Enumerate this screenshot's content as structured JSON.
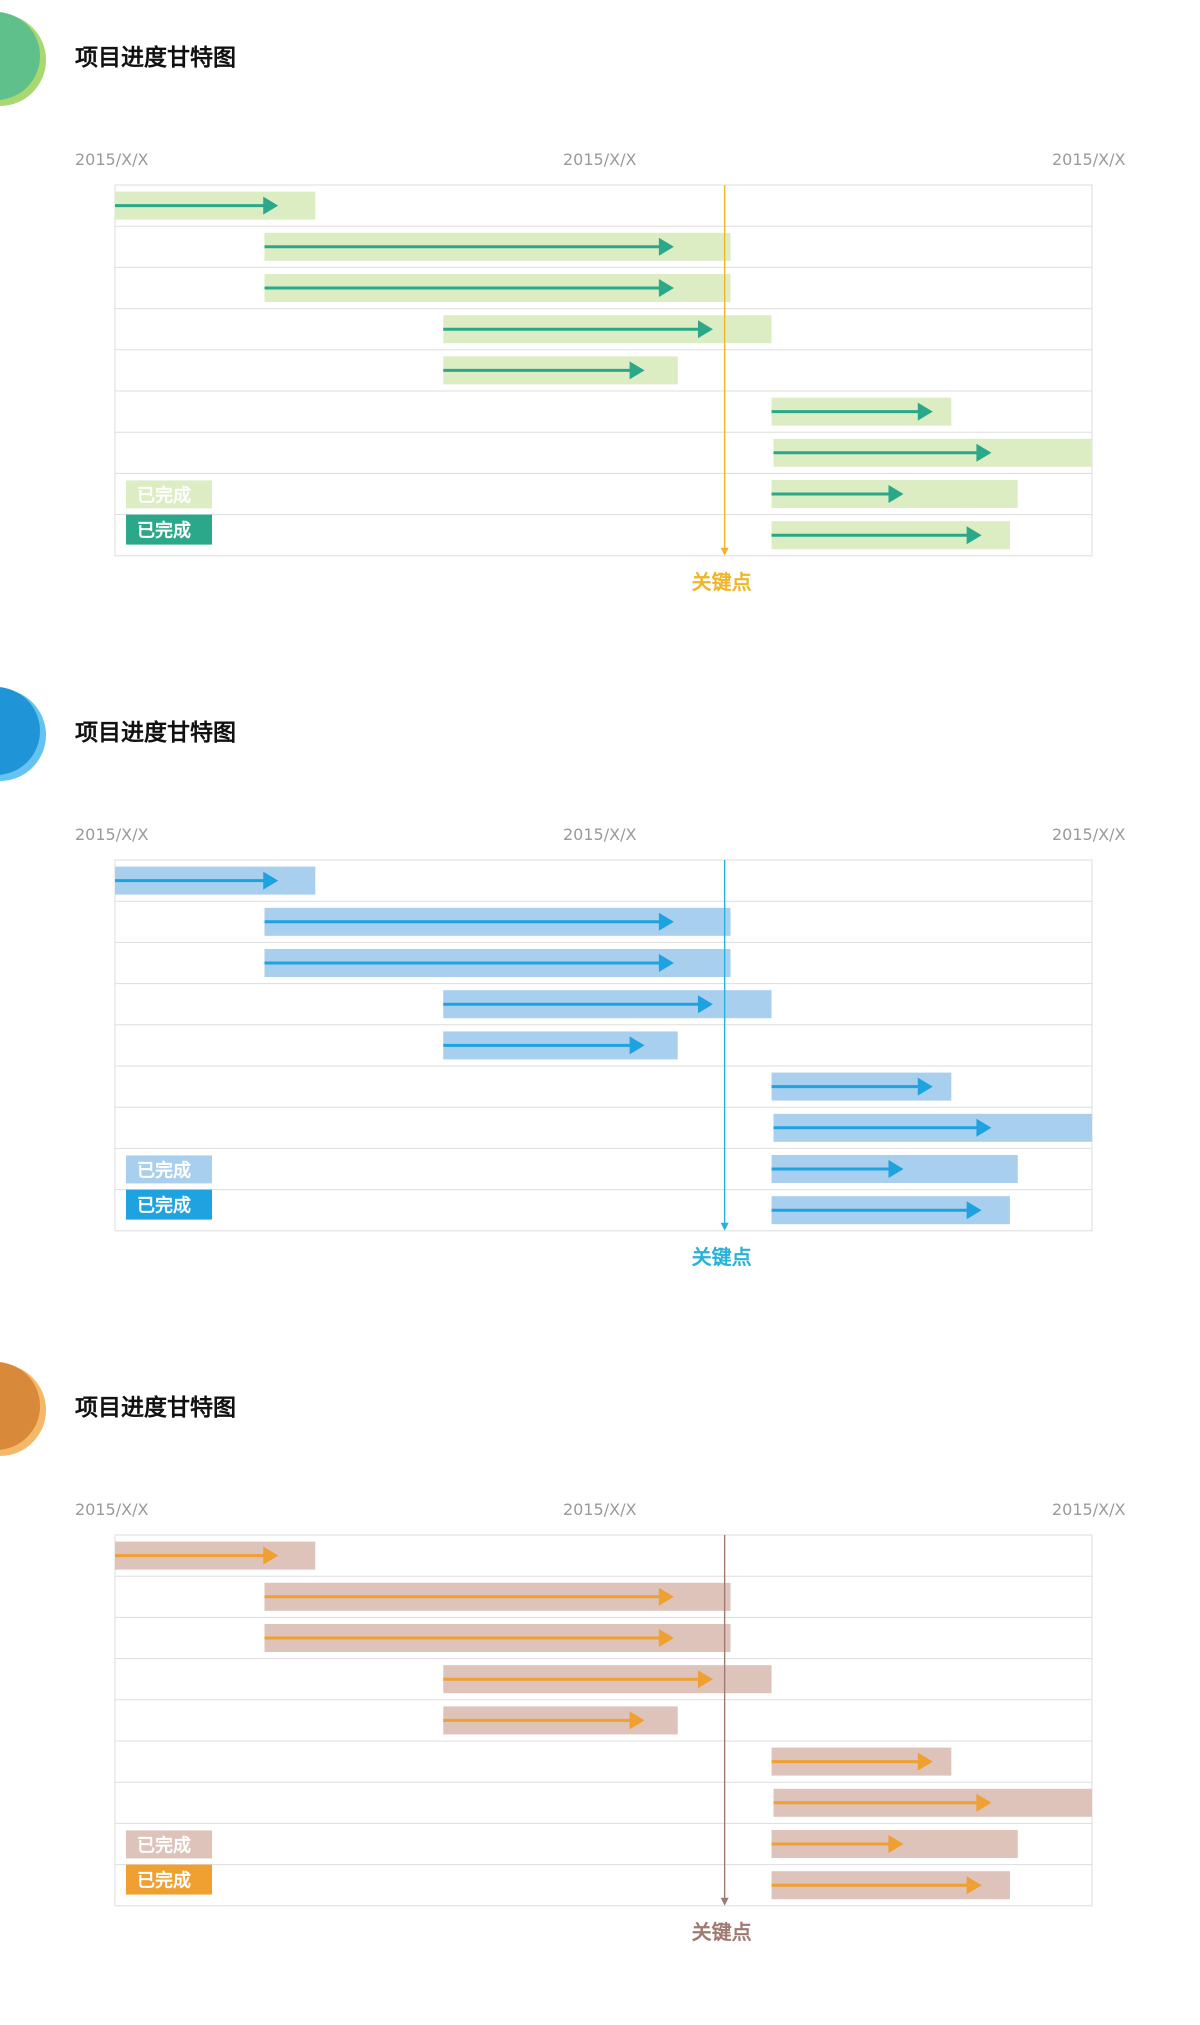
{
  "chart_data": [
    {
      "type": "gantt",
      "title": "项目进度甘特图",
      "x_tick_labels": [
        "2015/X/X",
        "2015/X/X",
        "2015/X/X"
      ],
      "xlim": [
        0,
        100
      ],
      "tasks": [
        {
          "planned": [
            0,
            20.5
          ],
          "completed": [
            0,
            16.5
          ]
        },
        {
          "planned": [
            15.3,
            63
          ],
          "completed": [
            15.3,
            57
          ]
        },
        {
          "planned": [
            15.3,
            63
          ],
          "completed": [
            15.3,
            57
          ]
        },
        {
          "planned": [
            33.6,
            67.2
          ],
          "completed": [
            33.6,
            61
          ]
        },
        {
          "planned": [
            33.6,
            57.6
          ],
          "completed": [
            33.6,
            54
          ]
        },
        {
          "planned": [
            67.2,
            85.6
          ],
          "completed": [
            67.2,
            83.5
          ]
        },
        {
          "planned": [
            67.4,
            100
          ],
          "completed": [
            67.4,
            89.5
          ]
        },
        {
          "planned": [
            67.2,
            92.4
          ],
          "completed": [
            67.2,
            80.5
          ]
        },
        {
          "planned": [
            67.2,
            91.6
          ],
          "completed": [
            67.2,
            88.5
          ]
        }
      ],
      "milestone": {
        "x": 62.4,
        "label": "关键点"
      },
      "legend": {
        "planned_label": "已完成",
        "completed_label": "已完成",
        "position": "bottom-left"
      },
      "grid": true,
      "colors": {
        "accent": "#2aa889",
        "planned_bar": "#dcedc4",
        "milestone": "#f0b428",
        "circle": "#5fc08c",
        "circle_edge": "#a8d870"
      }
    },
    {
      "type": "gantt",
      "title": "项目进度甘特图",
      "x_tick_labels": [
        "2015/X/X",
        "2015/X/X",
        "2015/X/X"
      ],
      "xlim": [
        0,
        100
      ],
      "tasks": [
        {
          "planned": [
            0,
            20.5
          ],
          "completed": [
            0,
            16.5
          ]
        },
        {
          "planned": [
            15.3,
            63
          ],
          "completed": [
            15.3,
            57
          ]
        },
        {
          "planned": [
            15.3,
            63
          ],
          "completed": [
            15.3,
            57
          ]
        },
        {
          "planned": [
            33.6,
            67.2
          ],
          "completed": [
            33.6,
            61
          ]
        },
        {
          "planned": [
            33.6,
            57.6
          ],
          "completed": [
            33.6,
            54
          ]
        },
        {
          "planned": [
            67.2,
            85.6
          ],
          "completed": [
            67.2,
            83.5
          ]
        },
        {
          "planned": [
            67.4,
            100
          ],
          "completed": [
            67.4,
            89.5
          ]
        },
        {
          "planned": [
            67.2,
            92.4
          ],
          "completed": [
            67.2,
            80.5
          ]
        },
        {
          "planned": [
            67.2,
            91.6
          ],
          "completed": [
            67.2,
            88.5
          ]
        }
      ],
      "milestone": {
        "x": 62.4,
        "label": "关键点"
      },
      "legend": {
        "planned_label": "已完成",
        "completed_label": "已完成",
        "position": "bottom-left"
      },
      "grid": true,
      "colors": {
        "accent": "#1ea3e0",
        "planned_bar": "#a9cfee",
        "milestone": "#27b3d9",
        "circle": "#1f95d8",
        "circle_edge": "#66c3ef"
      }
    },
    {
      "type": "gantt",
      "title": "项目进度甘特图",
      "x_tick_labels": [
        "2015/X/X",
        "2015/X/X",
        "2015/X/X"
      ],
      "xlim": [
        0,
        100
      ],
      "tasks": [
        {
          "planned": [
            0,
            20.5
          ],
          "completed": [
            0,
            16.5
          ]
        },
        {
          "planned": [
            15.3,
            63
          ],
          "completed": [
            15.3,
            57
          ]
        },
        {
          "planned": [
            15.3,
            63
          ],
          "completed": [
            15.3,
            57
          ]
        },
        {
          "planned": [
            33.6,
            67.2
          ],
          "completed": [
            33.6,
            61
          ]
        },
        {
          "planned": [
            33.6,
            57.6
          ],
          "completed": [
            33.6,
            54
          ]
        },
        {
          "planned": [
            67.2,
            85.6
          ],
          "completed": [
            67.2,
            83.5
          ]
        },
        {
          "planned": [
            67.4,
            100
          ],
          "completed": [
            67.4,
            89.5
          ]
        },
        {
          "planned": [
            67.2,
            92.4
          ],
          "completed": [
            67.2,
            80.5
          ]
        },
        {
          "planned": [
            67.2,
            91.6
          ],
          "completed": [
            67.2,
            88.5
          ]
        }
      ],
      "milestone": {
        "x": 62.4,
        "label": "关键点"
      },
      "legend": {
        "planned_label": "已完成",
        "completed_label": "已完成",
        "position": "bottom-left"
      },
      "grid": true,
      "colors": {
        "accent": "#f0a030",
        "planned_bar": "#ddc3ba",
        "milestone": "#a07a70",
        "circle": "#d8893a",
        "circle_edge": "#f4b868"
      }
    }
  ]
}
